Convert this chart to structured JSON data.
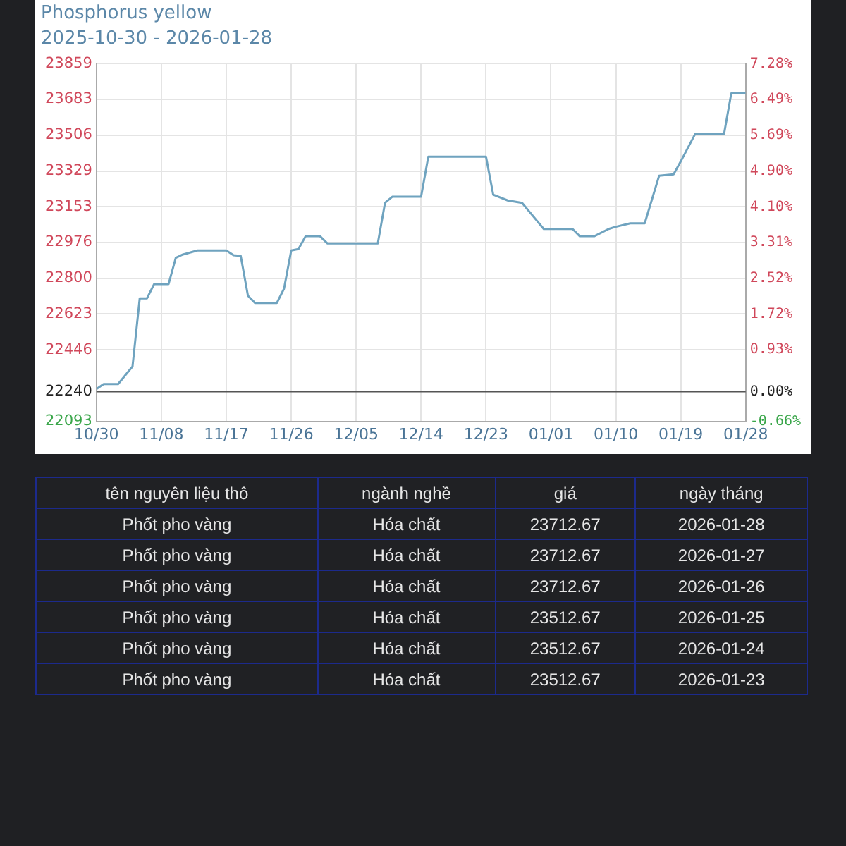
{
  "chart_data": [
    {
      "type": "line",
      "title": "Phosphorus yellow",
      "subtitle": "2025-10-30 - 2026-01-28",
      "x": [
        "2025-10-30",
        "2025-10-31",
        "2025-11-02",
        "2025-11-04",
        "2025-11-05",
        "2025-11-06",
        "2025-11-07",
        "2025-11-09",
        "2025-11-10",
        "2025-11-11",
        "2025-11-13",
        "2025-11-17",
        "2025-11-18",
        "2025-11-19",
        "2025-11-20",
        "2025-11-21",
        "2025-11-24",
        "2025-11-25",
        "2025-11-26",
        "2025-11-27",
        "2025-11-28",
        "2025-11-30",
        "2025-12-01",
        "2025-12-08",
        "2025-12-09",
        "2025-12-10",
        "2025-12-14",
        "2025-12-15",
        "2025-12-23",
        "2025-12-24",
        "2025-12-26",
        "2025-12-28",
        "2025-12-31",
        "2026-01-04",
        "2026-01-05",
        "2026-01-07",
        "2026-01-09",
        "2026-01-10",
        "2026-01-12",
        "2026-01-14",
        "2026-01-16",
        "2026-01-18",
        "2026-01-19",
        "2026-01-21",
        "2026-01-25",
        "2026-01-26",
        "2026-01-28"
      ],
      "series": [
        {
          "color": "#6fa3bf",
          "values": [
            22253,
            22277,
            22277,
            22364,
            22700,
            22700,
            22771,
            22771,
            22901,
            22917,
            22937,
            22937,
            22913,
            22910,
            22713,
            22677,
            22677,
            22748,
            22937,
            22944,
            23007,
            23007,
            22972,
            22972,
            23172,
            23202,
            23202,
            23400,
            23400,
            23212,
            23184,
            23172,
            23043,
            23043,
            23007,
            23007,
            23043,
            23054,
            23071,
            23071,
            23306,
            23313,
            23377,
            23512.67,
            23512.67,
            23712.67,
            23712.67
          ]
        }
      ],
      "xlim": [
        "2025-10-30",
        "2026-01-28"
      ],
      "xticks": [
        {
          "value": "2025-10-30",
          "label": "10/30"
        },
        {
          "value": "2025-11-08",
          "label": "11/08"
        },
        {
          "value": "2025-11-17",
          "label": "11/17"
        },
        {
          "value": "2025-11-26",
          "label": "11/26"
        },
        {
          "value": "2025-12-05",
          "label": "12/05"
        },
        {
          "value": "2025-12-14",
          "label": "12/14"
        },
        {
          "value": "2025-12-23",
          "label": "12/23"
        },
        {
          "value": "2026-01-01",
          "label": "01/01"
        },
        {
          "value": "2026-01-10",
          "label": "01/10"
        },
        {
          "value": "2026-01-19",
          "label": "01/19"
        },
        {
          "value": "2026-01-28",
          "label": "01/28"
        }
      ],
      "ylim": [
        22093,
        23859
      ],
      "yticks": [
        22093,
        22240,
        22446,
        22623,
        22800,
        22976,
        23153,
        23329,
        23506,
        23683,
        23859
      ],
      "y2lim": [
        -0.66,
        7.28
      ],
      "y2ticks": [
        {
          "value": -0.66,
          "label": "-0.66%"
        },
        {
          "value": 0,
          "label": "0.00%"
        },
        {
          "value": 0.93,
          "label": "0.93%"
        },
        {
          "value": 1.72,
          "label": "1.72%"
        },
        {
          "value": 2.52,
          "label": "2.52%"
        },
        {
          "value": 3.31,
          "label": "3.31%"
        },
        {
          "value": 4.1,
          "label": "4.10%"
        },
        {
          "value": 4.9,
          "label": "4.90%"
        },
        {
          "value": 5.69,
          "label": "5.69%"
        },
        {
          "value": 6.49,
          "label": "6.49%"
        },
        {
          "value": 7.28,
          "label": "7.28%"
        }
      ],
      "ref_lines": [
        {
          "axis": "y",
          "value": 22240,
          "color": "#555555"
        }
      ],
      "grid": true,
      "legend": false,
      "marker": "none",
      "line_style": "solid"
    },
    {
      "type": "other",
      "categories": [
        "tên nguyên liệu thô",
        "ngành nghề",
        "giá",
        "ngày tháng"
      ],
      "annotations": [
        "Phốt pho vàng",
        "Hóa chất",
        "23712.67",
        "2026-01-28",
        "Phốt pho vàng",
        "Hóa chất",
        "23712.67",
        "2026-01-27",
        "Phốt pho vàng",
        "Hóa chất",
        "23712.67",
        "2026-01-26",
        "Phốt pho vàng",
        "Hóa chất",
        "23512.67",
        "2026-01-25",
        "Phốt pho vàng",
        "Hóa chất",
        "23512.67",
        "2026-01-24",
        "Phốt pho vàng",
        "Hóa chất",
        "23512.67",
        "2026-01-23"
      ]
    }
  ]
}
